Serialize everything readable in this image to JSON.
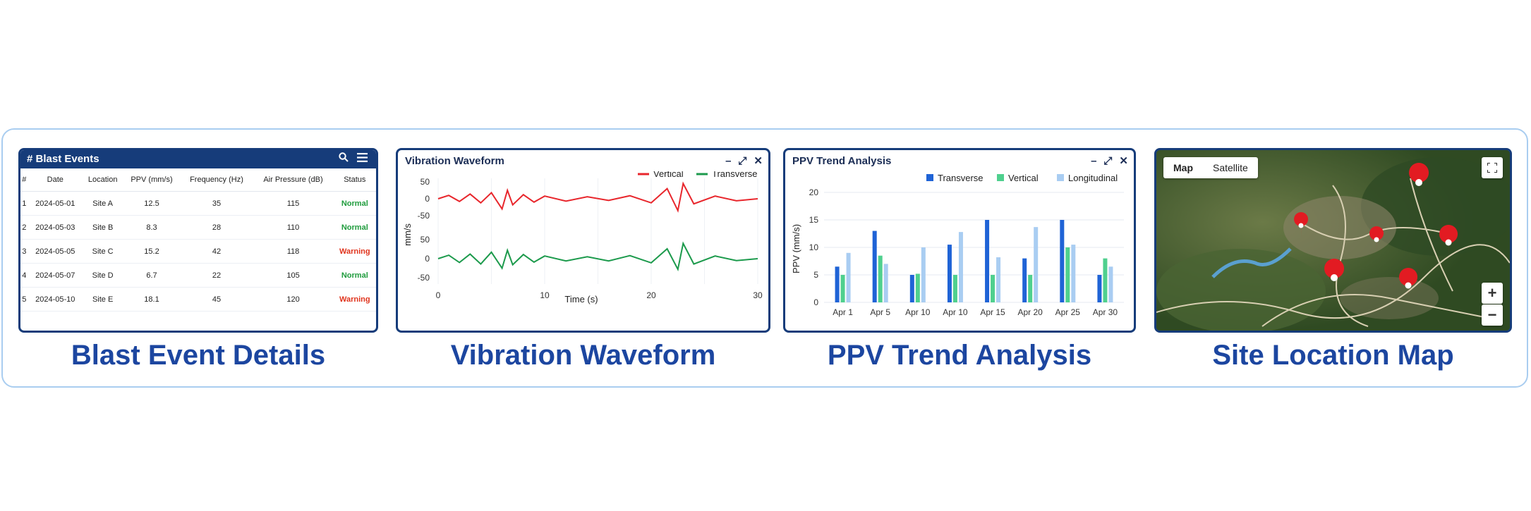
{
  "blast_events": {
    "title": "# Blast Events",
    "columns": [
      "#",
      "Date",
      "Location",
      "PPV (mm/s)",
      "Frequency (Hz)",
      "Air Pressure (dB)",
      "Status"
    ],
    "rows": [
      {
        "n": "1",
        "date": "2024-05-01",
        "location": "Site A",
        "ppv": "12.5",
        "freq": "35",
        "air": "115",
        "status": "Normal"
      },
      {
        "n": "2",
        "date": "2024-05-03",
        "location": "Site B",
        "ppv": "8.3",
        "freq": "28",
        "air": "110",
        "status": "Normal"
      },
      {
        "n": "3",
        "date": "2024-05-05",
        "location": "Site C",
        "ppv": "15.2",
        "freq": "42",
        "air": "118",
        "status": "Warning"
      },
      {
        "n": "4",
        "date": "2024-05-07",
        "location": "Site D",
        "ppv": "6.7",
        "freq": "22",
        "air": "105",
        "status": "Normal"
      },
      {
        "n": "5",
        "date": "2024-05-10",
        "location": "Site E",
        "ppv": "18.1",
        "freq": "45",
        "air": "120",
        "status": "Warning"
      }
    ],
    "caption": "Blast Event Details"
  },
  "waveform": {
    "title": "Vibration Waveform",
    "caption": "Vibration Waveform",
    "window_controls": [
      "–",
      "⤢",
      "✕"
    ]
  },
  "ppv": {
    "title": "PPV Trend Analysis",
    "caption": "PPV Trend Analysis",
    "window_controls": [
      "–",
      "⤢",
      "✕"
    ]
  },
  "map": {
    "tabs": [
      "Map",
      "Satellite"
    ],
    "zoom_in": "+",
    "zoom_out": "−",
    "caption": "Site Location Map"
  },
  "colors": {
    "vertical_wave": "#e8262c",
    "transverse_wave": "#1c9a4c",
    "bar_transverse": "#1f63d6",
    "bar_vertical": "#4fd08e",
    "bar_longitudinal": "#a9cdf2",
    "normal": "#1e9b3c",
    "warning": "#e0341d"
  },
  "chart_data": [
    {
      "type": "line",
      "xlabel": "Time (s)",
      "ylabel": "mm/s",
      "xticks": [
        "0",
        "10",
        "20",
        "30"
      ],
      "xlim": [
        0,
        30
      ],
      "series": [
        {
          "name": "Vertical",
          "yticks": [
            "50",
            "0",
            "-50"
          ],
          "ylim": [
            -50,
            50
          ],
          "x": [
            0,
            1,
            2,
            3,
            4,
            5,
            6,
            6.5,
            7,
            8,
            9,
            10,
            12,
            14,
            16,
            18,
            20,
            21.5,
            22.5,
            23,
            24,
            26,
            28,
            30
          ],
          "y": [
            0,
            10,
            -8,
            14,
            -12,
            18,
            -30,
            25,
            -18,
            12,
            -10,
            8,
            -7,
            6,
            -5,
            9,
            -12,
            30,
            -35,
            45,
            -15,
            8,
            -6,
            0
          ]
        },
        {
          "name": "Transverse",
          "yticks": [
            "50",
            "0",
            "-50"
          ],
          "ylim": [
            -50,
            50
          ],
          "x": [
            0,
            1,
            2,
            3,
            4,
            5,
            6,
            6.5,
            7,
            8,
            9,
            10,
            12,
            14,
            16,
            18,
            20,
            21.5,
            22.5,
            23,
            24,
            26,
            28,
            30
          ],
          "y": [
            0,
            9,
            -10,
            12,
            -14,
            17,
            -25,
            22,
            -16,
            11,
            -9,
            7,
            -6,
            5,
            -6,
            8,
            -11,
            26,
            -28,
            40,
            -14,
            7,
            -5,
            0
          ]
        }
      ]
    },
    {
      "type": "bar",
      "xlabel": "",
      "ylabel": "PPV (mm/s)",
      "ylim": [
        0,
        20
      ],
      "yticks": [
        "0",
        "5",
        "10",
        "15",
        "20"
      ],
      "categories": [
        "Apr 1",
        "Apr 5",
        "Apr 10",
        "Apr 10",
        "Apr 15",
        "Apr 20",
        "Apr 25",
        "Apr 30"
      ],
      "legend_position": "top",
      "series": [
        {
          "name": "Transverse",
          "values": [
            6.5,
            13,
            5,
            10.5,
            15,
            8,
            15,
            5
          ]
        },
        {
          "name": "Vertical",
          "values": [
            5,
            8.5,
            5.2,
            5,
            5,
            5,
            10,
            8
          ]
        },
        {
          "name": "Longitudinal",
          "values": [
            9,
            7,
            10,
            12.8,
            8.2,
            13.7,
            10.5,
            6.5
          ]
        }
      ]
    }
  ]
}
